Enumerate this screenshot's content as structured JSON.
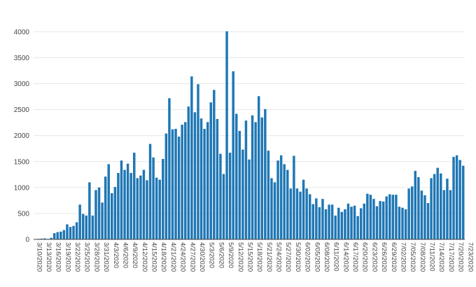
{
  "chart_data": {
    "type": "bar",
    "title": "",
    "xlabel": "",
    "ylabel": "",
    "ylim": [
      0,
      4100
    ],
    "grid": true,
    "bar_color": "#1f77b4",
    "yticks": [
      0,
      500,
      1000,
      1500,
      2000,
      2500,
      3000,
      3500,
      4000
    ],
    "xtick_labels": [
      "3/10/2020",
      "3/13/2020",
      "3/16/2020",
      "3/19/2020",
      "3/22/2020",
      "3/25/2020",
      "3/28/2020",
      "3/31/2020",
      "4/3/2020",
      "4/6/2020",
      "4/9/2020",
      "4/12/2020",
      "4/15/2020",
      "4/18/2020",
      "4/21/2020",
      "4/24/2020",
      "4/27/2020",
      "4/30/2020",
      "5/3/2020",
      "5/6/2020",
      "5/9/2020",
      "5/12/2020",
      "5/15/2020",
      "5/18/2020",
      "5/21/2020",
      "5/24/2020",
      "5/27/2020",
      "5/30/2020",
      "6/02/2020",
      "6/05/2020",
      "6/08/2020",
      "6/11/2020",
      "6/14/2020",
      "6/17/2020",
      "6/20/2020",
      "6/23/2020",
      "6/26/2020",
      "6/29/2020",
      "7/02/2020",
      "7/05/2020",
      "7/08/2020",
      "7/11/2020",
      "7/14/2020",
      "7/17/2020",
      "7/20/2020",
      "7/23/2020"
    ],
    "start_date": "2020-03-10",
    "values": [
      5,
      10,
      15,
      20,
      10,
      30,
      120,
      140,
      150,
      180,
      290,
      240,
      260,
      330,
      670,
      490,
      460,
      1100,
      460,
      950,
      1000,
      710,
      1210,
      1450,
      890,
      1010,
      1280,
      1520,
      1340,
      1460,
      1280,
      1670,
      1180,
      1230,
      1340,
      1140,
      1840,
      1580,
      1190,
      1150,
      1550,
      2040,
      2720,
      2120,
      2130,
      1980,
      2210,
      2260,
      2560,
      3140,
      2450,
      2990,
      2330,
      2130,
      2260,
      2640,
      2880,
      2320,
      1650,
      1260,
      4010,
      1670,
      3240,
      2420,
      2090,
      1730,
      2290,
      1540,
      2390,
      2260,
      2760,
      2350,
      2510,
      1710,
      1180,
      1100,
      1520,
      1620,
      1450,
      1340,
      980,
      1610,
      980,
      920,
      1150,
      980,
      870,
      680,
      790,
      620,
      780,
      580,
      670,
      670,
      460,
      610,
      530,
      580,
      690,
      630,
      650,
      450,
      600,
      690,
      880,
      860,
      780,
      640,
      740,
      730,
      830,
      870,
      860,
      860,
      630,
      610,
      580,
      980,
      1020,
      1320,
      1200,
      940,
      850,
      700,
      1180,
      1260,
      1380,
      1270,
      950,
      1170,
      950,
      1590,
      1620,
      1530,
      1420
    ]
  }
}
